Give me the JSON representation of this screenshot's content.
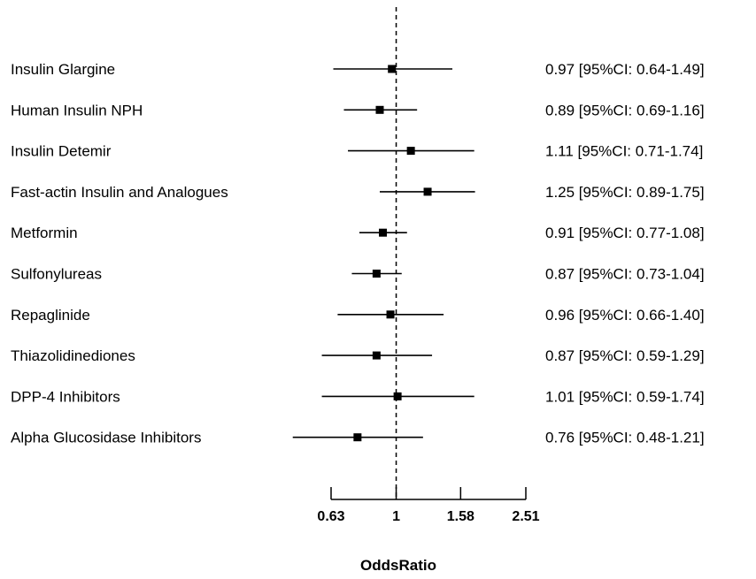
{
  "chart_data": {
    "type": "forest",
    "xlabel": "OddsRatio",
    "x_scale": "log",
    "xlim": [
      0.63,
      2.51
    ],
    "reference_line": 1,
    "x_ticks": [
      0.63,
      1,
      1.58,
      2.51
    ],
    "x_tick_labels": [
      "0.63",
      "1",
      "1.58",
      "2.51"
    ],
    "rows": [
      {
        "label": "Insulin Glargine",
        "or": 0.97,
        "lo": 0.64,
        "hi": 1.49,
        "text": "0.97 [95%CI: 0.64-1.49]"
      },
      {
        "label": "Human Insulin NPH",
        "or": 0.89,
        "lo": 0.69,
        "hi": 1.16,
        "text": "0.89 [95%CI: 0.69-1.16]"
      },
      {
        "label": "Insulin Detemir",
        "or": 1.11,
        "lo": 0.71,
        "hi": 1.74,
        "text": "1.11 [95%CI: 0.71-1.74]"
      },
      {
        "label": "Fast-actin Insulin and Analogues",
        "or": 1.25,
        "lo": 0.89,
        "hi": 1.75,
        "text": "1.25 [95%CI: 0.89-1.75]"
      },
      {
        "label": "Metformin",
        "or": 0.91,
        "lo": 0.77,
        "hi": 1.08,
        "text": "0.91 [95%CI: 0.77-1.08]"
      },
      {
        "label": "Sulfonylureas",
        "or": 0.87,
        "lo": 0.73,
        "hi": 1.04,
        "text": "0.87 [95%CI: 0.73-1.04]"
      },
      {
        "label": "Repaglinide",
        "or": 0.96,
        "lo": 0.66,
        "hi": 1.4,
        "text": "0.96 [95%CI: 0.66-1.40]"
      },
      {
        "label": "Thiazolidinediones",
        "or": 0.87,
        "lo": 0.59,
        "hi": 1.29,
        "text": "0.87 [95%CI: 0.59-1.29]"
      },
      {
        "label": "DPP-4 Inhibitors",
        "or": 1.01,
        "lo": 0.59,
        "hi": 1.74,
        "text": "1.01 [95%CI: 0.59-1.74]"
      },
      {
        "label": "Alpha Glucosidase Inhibitors",
        "or": 0.76,
        "lo": 0.48,
        "hi": 1.21,
        "text": "0.76  [95%CI: 0.48-1.21]"
      }
    ]
  }
}
